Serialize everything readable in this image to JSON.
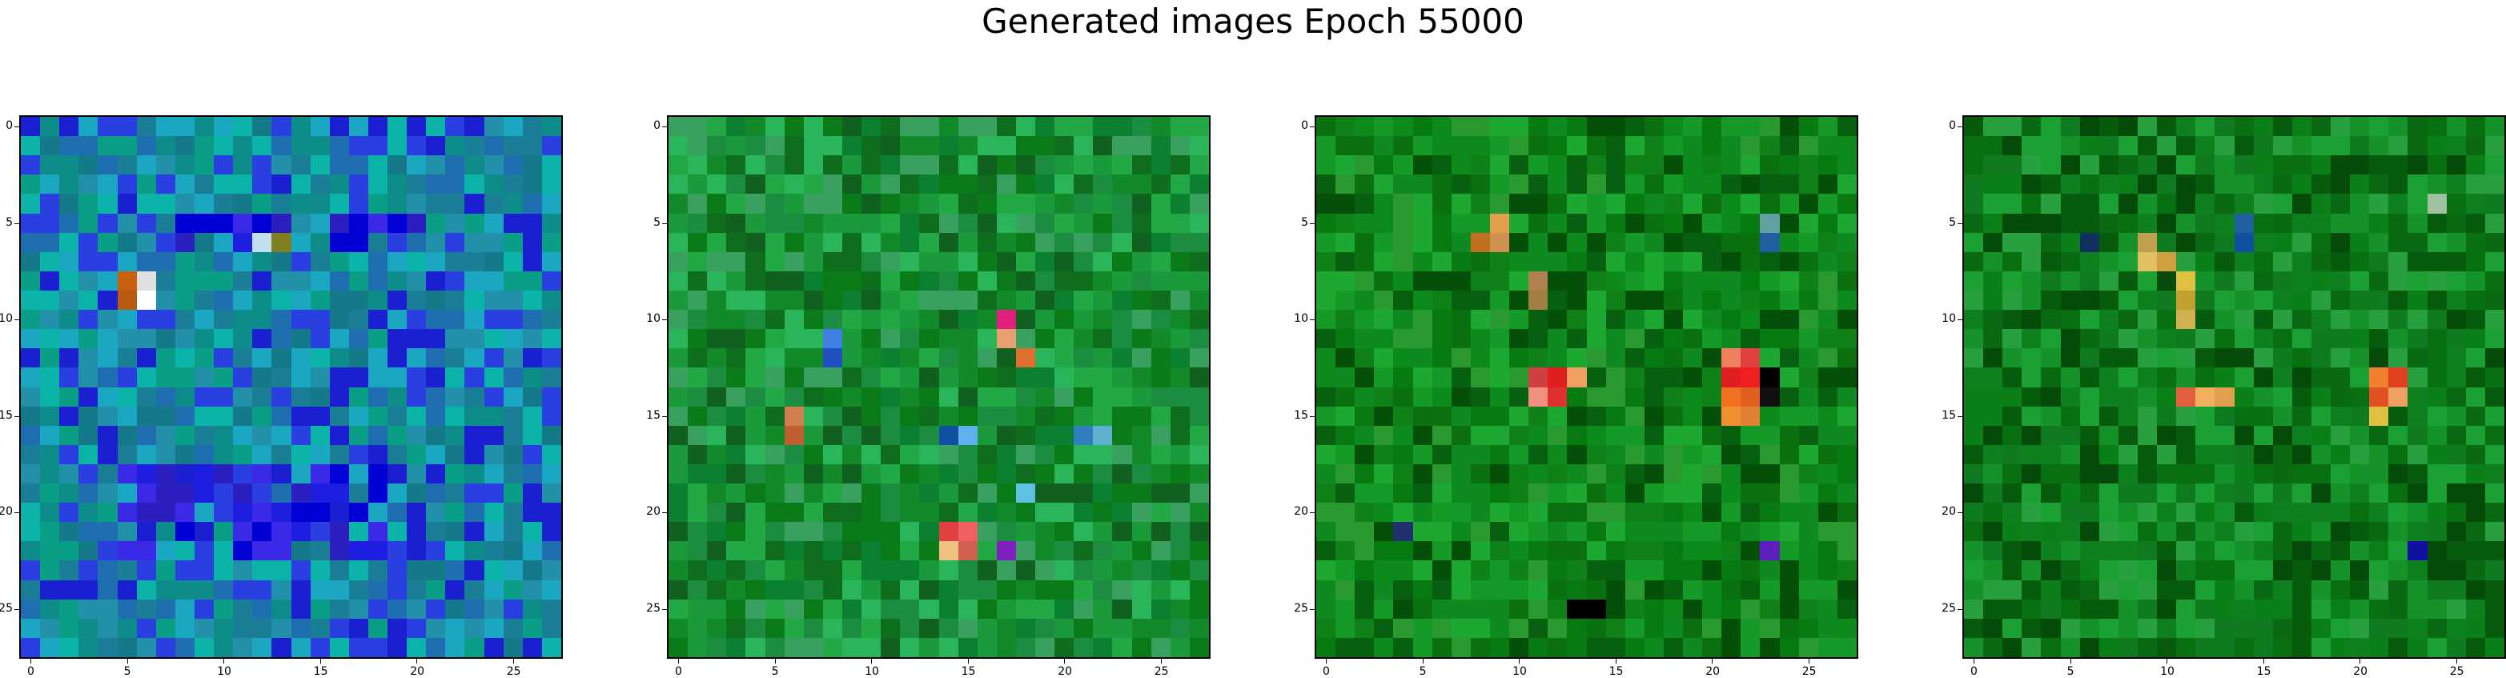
{
  "title": "Generated images Epoch 55000",
  "ticks": [
    "0",
    "5",
    "10",
    "15",
    "20",
    "25"
  ],
  "panels": [
    {
      "palette": [
        "#1a7e96",
        "#2290a8",
        "#0e8c8a",
        "#0bb3a8",
        "#1ba6c2",
        "#147a8a",
        "#1f6fb0",
        "#2a3fe0",
        "#1a20d0",
        "#0a9e86"
      ],
      "block": [
        [
          5,
          6,
          8,
          20
        ],
        [
          18,
          22,
          5,
          18
        ]
      ],
      "blockColor": [
        "#1e1ee0",
        "#3a2ae8",
        "#0000d4",
        "#2b1fbf"
      ],
      "accents": [
        [
          8,
          5,
          "#c8600e"
        ],
        [
          8,
          6,
          "#e0e0e0"
        ],
        [
          9,
          5,
          "#b85a10"
        ],
        [
          9,
          6,
          "#ffffff"
        ],
        [
          6,
          12,
          "#c0e0f0"
        ],
        [
          6,
          13,
          "#808020"
        ]
      ]
    },
    {
      "palette": [
        "#0b7a18",
        "#128a2a",
        "#1a9a3a",
        "#0f6e1e",
        "#22a844",
        "#0a8030",
        "#2bb55a",
        "#3aa060",
        "#106020",
        "#1c8c40"
      ],
      "block": [],
      "blockColor": [],
      "accents": [
        [
          10,
          17,
          "#e0207a"
        ],
        [
          11,
          17,
          "#e8a070"
        ],
        [
          12,
          18,
          "#e07030"
        ],
        [
          11,
          8,
          "#4080e0"
        ],
        [
          12,
          8,
          "#2050c0"
        ],
        [
          15,
          6,
          "#d08050"
        ],
        [
          16,
          6,
          "#c06030"
        ],
        [
          16,
          14,
          "#1050a0"
        ],
        [
          16,
          15,
          "#60b0f0"
        ],
        [
          19,
          18,
          "#60c0e0"
        ],
        [
          21,
          14,
          "#e04040"
        ],
        [
          21,
          15,
          "#f06060"
        ],
        [
          22,
          14,
          "#f0c080"
        ],
        [
          22,
          15,
          "#d06050"
        ],
        [
          22,
          17,
          "#8020c0"
        ],
        [
          16,
          21,
          "#3080c0"
        ],
        [
          16,
          22,
          "#60b0d0"
        ]
      ]
    },
    {
      "palette": [
        "#087a12",
        "#0c8a1c",
        "#108018",
        "#066010",
        "#159a28",
        "#0a7010",
        "#1da832",
        "#2a9a30",
        "#045008",
        "#0f8a20"
      ],
      "block": [],
      "blockColor": [],
      "accents": [
        [
          5,
          9,
          "#e0a050"
        ],
        [
          6,
          8,
          "#c07020"
        ],
        [
          6,
          9,
          "#d09050"
        ],
        [
          8,
          11,
          "#b08050"
        ],
        [
          9,
          11,
          "#a08040"
        ],
        [
          13,
          11,
          "#d04040"
        ],
        [
          13,
          12,
          "#e02020"
        ],
        [
          13,
          13,
          "#f0a060"
        ],
        [
          14,
          11,
          "#f09080"
        ],
        [
          14,
          12,
          "#e03030"
        ],
        [
          12,
          21,
          "#f08060"
        ],
        [
          12,
          22,
          "#e04040"
        ],
        [
          13,
          21,
          "#e02020"
        ],
        [
          13,
          22,
          "#f02020"
        ],
        [
          14,
          21,
          "#f07020"
        ],
        [
          14,
          22,
          "#e06020"
        ],
        [
          15,
          21,
          "#f09030"
        ],
        [
          15,
          22,
          "#e08030"
        ],
        [
          13,
          23,
          "#000000"
        ],
        [
          14,
          23,
          "#101010"
        ],
        [
          5,
          23,
          "#60a0a0"
        ],
        [
          6,
          23,
          "#2060a0"
        ],
        [
          25,
          13,
          "#000000"
        ],
        [
          25,
          14,
          "#000000"
        ],
        [
          21,
          4,
          "#203070"
        ],
        [
          22,
          23,
          "#6020c0"
        ]
      ]
    },
    {
      "palette": [
        "#087010",
        "#0c8018",
        "#107a20",
        "#065c0c",
        "#15922a",
        "#0a6a14",
        "#1ba034",
        "#28a040",
        "#044a08",
        "#0e8020"
      ],
      "block": [],
      "blockColor": [],
      "accents": [
        [
          6,
          9,
          "#c0a050"
        ],
        [
          7,
          9,
          "#e0c060"
        ],
        [
          7,
          10,
          "#d0a040"
        ],
        [
          8,
          11,
          "#e0c040"
        ],
        [
          9,
          11,
          "#c0a030"
        ],
        [
          10,
          11,
          "#d0b050"
        ],
        [
          13,
          21,
          "#f08030"
        ],
        [
          13,
          22,
          "#e04020"
        ],
        [
          14,
          21,
          "#e05020"
        ],
        [
          14,
          22,
          "#f0a060"
        ],
        [
          15,
          21,
          "#e0c040"
        ],
        [
          14,
          11,
          "#e06040"
        ],
        [
          14,
          12,
          "#f0b060"
        ],
        [
          14,
          13,
          "#e0a050"
        ],
        [
          5,
          14,
          "#2060a0"
        ],
        [
          6,
          14,
          "#1050a0"
        ],
        [
          4,
          24,
          "#a0c0a0"
        ],
        [
          6,
          6,
          "#103060"
        ],
        [
          22,
          23,
          "#1010a0"
        ]
      ]
    }
  ]
}
